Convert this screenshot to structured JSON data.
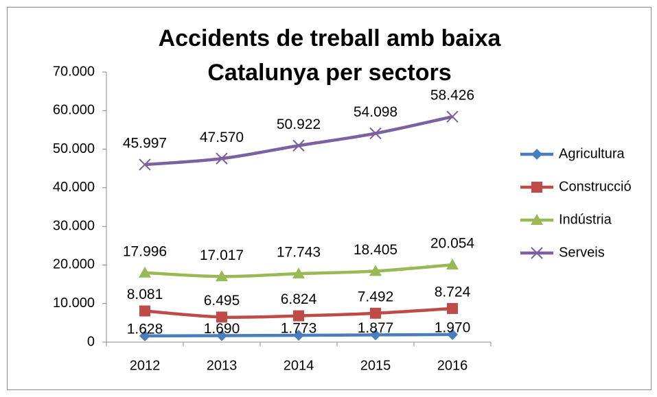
{
  "chart_data": {
    "type": "line",
    "title": "Accidents de treball amb baixa Catalunya per sectors",
    "categories": [
      "2012",
      "2013",
      "2014",
      "2015",
      "2016"
    ],
    "series": [
      {
        "name": "Agricultura",
        "color": "#4a7ebb",
        "marker": "diamond",
        "values": [
          1628,
          1690,
          1773,
          1877,
          1970
        ],
        "value_labels": [
          "1.628",
          "1.690",
          "1.773",
          "1.877",
          "1.970"
        ]
      },
      {
        "name": "Construcció",
        "color": "#be4b48",
        "marker": "square",
        "values": [
          8081,
          6495,
          6824,
          7492,
          8724
        ],
        "value_labels": [
          "8.081",
          "6.495",
          "6.824",
          "7.492",
          "8.724"
        ]
      },
      {
        "name": "Indústria",
        "color": "#98b954",
        "marker": "triangle",
        "values": [
          17996,
          17017,
          17743,
          18405,
          20054
        ],
        "value_labels": [
          "17.996",
          "17.017",
          "17.743",
          "18.405",
          "20.054"
        ]
      },
      {
        "name": "Serveis",
        "color": "#7d60a0",
        "marker": "x",
        "values": [
          45997,
          47570,
          50922,
          54098,
          58426
        ],
        "value_labels": [
          "45.997",
          "47.570",
          "50.922",
          "54.098",
          "58.426"
        ]
      }
    ],
    "ylim": [
      0,
      70000
    ],
    "yticks": [
      0,
      {
        "value": 10000,
        "label": "10.000"
      },
      {
        "value": 20000,
        "label": "20.000"
      },
      {
        "value": 30000,
        "label": "30.000"
      },
      {
        "value": 40000,
        "label": "40.000"
      },
      {
        "value": 50000,
        "label": "50.000"
      },
      {
        "value": 60000,
        "label": "60.000"
      },
      {
        "value": 70000,
        "label": "70.000"
      }
    ],
    "legend": "right"
  }
}
